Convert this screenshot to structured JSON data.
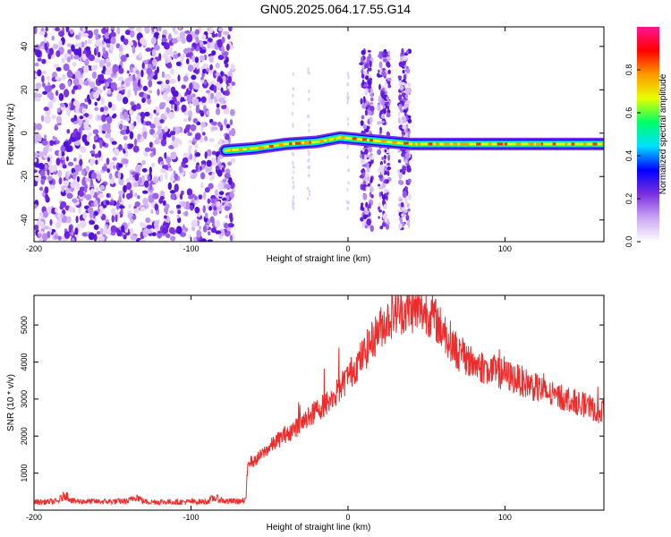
{
  "title": "GN05.2025.064.17.55.G14",
  "chart_data": [
    {
      "type": "heatmap",
      "xlabel": "Height of straight line (km)",
      "ylabel": "Frequency (Hz)",
      "xlim": [
        -200,
        163
      ],
      "ylim": [
        -50,
        49
      ],
      "xticks": [
        -200,
        -100,
        0,
        100
      ],
      "yticks": [
        40,
        20,
        0,
        -20,
        -40
      ],
      "colorbar": {
        "label": "Normalized spectral amplitude",
        "range": [
          0,
          1
        ],
        "ticks": [
          0.0,
          0.2,
          0.4,
          0.6,
          0.8
        ],
        "colormap": [
          "#ffffff",
          "#c9a6f4",
          "#7b2fe0",
          "#0000ff",
          "#00e0ff",
          "#00ff66",
          "#e6ff00",
          "#ff9900",
          "#ff0000",
          "#ff1493"
        ]
      },
      "features": {
        "noise_region_x": [
          -200,
          -73
        ],
        "carrier_path": [
          [
            -78,
            -8
          ],
          [
            -60,
            -7
          ],
          [
            -40,
            -5
          ],
          [
            -20,
            -4
          ],
          [
            -5,
            -2
          ],
          [
            10,
            -3
          ],
          [
            40,
            -5
          ],
          [
            163,
            -5
          ]
        ],
        "bursts_x": [
          12,
          23,
          36
        ]
      }
    },
    {
      "type": "line",
      "xlabel": "Height of straight line (km)",
      "ylabel": "SNR (10 * v/v)",
      "xlim": [
        -200,
        163
      ],
      "ylim": [
        0,
        5800
      ],
      "xticks": [
        -200,
        -100,
        0,
        100
      ],
      "yticks": [
        1000,
        2000,
        3000,
        4000,
        5000
      ],
      "color": "#ee2c2c",
      "series": [
        {
          "x": [
            -200,
            -185,
            -180,
            -175,
            -160,
            -140,
            -135,
            -130,
            -110,
            -90,
            -85,
            -78,
            -65,
            -64,
            -60,
            -50,
            -40,
            -30,
            -20,
            -10,
            0,
            10,
            20,
            30,
            40,
            50,
            55,
            60,
            65,
            70,
            80,
            90,
            100,
            110,
            120,
            130,
            140,
            150,
            160,
            163
          ],
          "y": [
            220,
            230,
            420,
            240,
            230,
            240,
            380,
            230,
            220,
            230,
            330,
            240,
            240,
            1350,
            1300,
            1700,
            2050,
            2300,
            2700,
            3000,
            3600,
            4200,
            4900,
            5350,
            5400,
            5350,
            5200,
            4850,
            4600,
            4250,
            3950,
            3800,
            3650,
            3500,
            3300,
            3100,
            3000,
            2850,
            2650,
            2600
          ]
        }
      ]
    }
  ]
}
